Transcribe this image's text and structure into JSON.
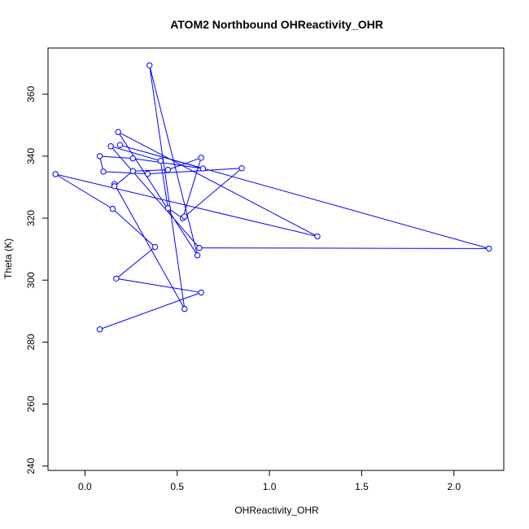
{
  "chart_data": {
    "type": "scatter",
    "title": "ATOM2 Northbound OHReactivity_OHR",
    "xlabel": "OHReactivity_OHR",
    "ylabel": "Theta (K)",
    "xlim": [
      -0.2,
      2.27
    ],
    "ylim": [
      238.6,
      374.9
    ],
    "x_ticks": [
      0.0,
      0.5,
      1.0,
      1.5,
      2.0
    ],
    "x_tick_labels": [
      "0.0",
      "0.5",
      "1.0",
      "1.5",
      "2.0"
    ],
    "y_ticks": [
      240,
      260,
      280,
      300,
      320,
      340,
      360
    ],
    "y_tick_labels": [
      "240",
      "260",
      "280",
      "300",
      "320",
      "340",
      "360"
    ],
    "point_style": "open-circle",
    "connected": true,
    "series": [
      {
        "name": "OHReactivity_OHR",
        "color": "#0000ff",
        "points": [
          {
            "x": 0.08,
            "y": 284.1
          },
          {
            "x": 0.63,
            "y": 296.0
          },
          {
            "x": 0.17,
            "y": 300.5
          },
          {
            "x": 0.38,
            "y": 310.7
          },
          {
            "x": 0.15,
            "y": 323.0
          },
          {
            "x": -0.16,
            "y": 334.2
          },
          {
            "x": 1.26,
            "y": 314.1
          },
          {
            "x": 0.18,
            "y": 347.8
          },
          {
            "x": 0.61,
            "y": 308.0
          },
          {
            "x": 0.35,
            "y": 369.3
          },
          {
            "x": 0.54,
            "y": 290.7
          },
          {
            "x": 0.16,
            "y": 331.0
          },
          {
            "x": 0.16,
            "y": 330.3
          },
          {
            "x": 0.26,
            "y": 335.2
          },
          {
            "x": 0.45,
            "y": 335.6
          },
          {
            "x": 0.63,
            "y": 339.5
          },
          {
            "x": 0.53,
            "y": 320.0
          },
          {
            "x": 0.45,
            "y": 323.2
          },
          {
            "x": 0.41,
            "y": 338.5
          },
          {
            "x": 0.14,
            "y": 343.2
          },
          {
            "x": 0.62,
            "y": 310.4
          },
          {
            "x": 2.19,
            "y": 310.2
          },
          {
            "x": 0.19,
            "y": 343.6
          },
          {
            "x": 0.64,
            "y": 336.0
          },
          {
            "x": 0.26,
            "y": 339.3
          },
          {
            "x": 0.08,
            "y": 340.0
          },
          {
            "x": 0.1,
            "y": 335.0
          },
          {
            "x": 0.34,
            "y": 334.3
          },
          {
            "x": 0.85,
            "y": 336.1
          },
          {
            "x": 0.54,
            "y": 320.5
          }
        ]
      }
    ]
  }
}
